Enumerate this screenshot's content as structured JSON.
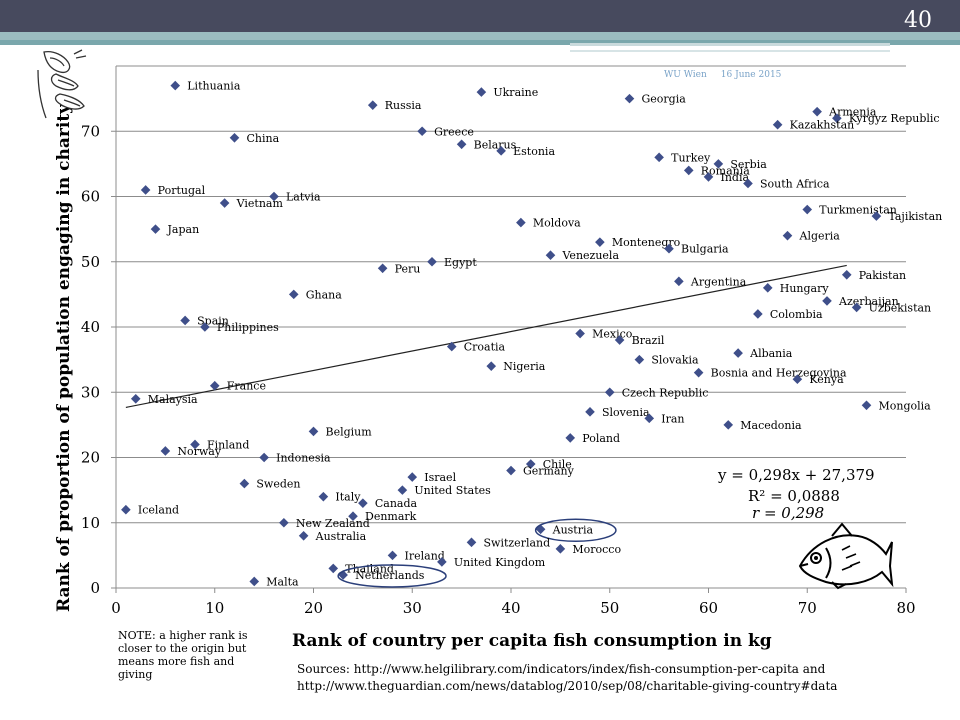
{
  "slide": {
    "number": "40",
    "watermark_org": "WU Wien",
    "watermark_date": "16 June 2015",
    "note": "NOTE: a higher rank is closer to the origin but means more fish and giving",
    "sources_line1": "Sources: http://www.helgilibrary.com/indicators/index/fish-consumption-per-capita and",
    "sources_line2": "http://www.theguardian.com/news/datablog/2010/sep/08/charitable-giving-country#data",
    "regression_equation": "y = 0,298x + 27,379",
    "r_squared": "R² = 0,0888",
    "r_value": "r = 0,298",
    "icons": [
      "praying-hands-icon",
      "fish-icon"
    ]
  },
  "chart_data": {
    "type": "scatter",
    "xlabel": "Rank of country per capita fish consumption in kg",
    "ylabel": "Rank of proportion of population engaging in charity",
    "xlim": [
      0,
      80
    ],
    "ylim": [
      0,
      80
    ],
    "xticks": [
      0,
      10,
      20,
      30,
      40,
      50,
      60,
      70,
      80
    ],
    "yticks": [
      0,
      10,
      20,
      30,
      40,
      50,
      60,
      70
    ],
    "grid": "horizontal",
    "marker": "diamond",
    "marker_color": "#3f4f8a",
    "trendline": {
      "slope": 0.298,
      "intercept": 27.379,
      "x_range": [
        1,
        74
      ]
    },
    "highlighted": [
      "Austria",
      "Netherlands"
    ],
    "points": [
      {
        "label": "Lithuania",
        "x": 6,
        "y": 77
      },
      {
        "label": "Ukraine",
        "x": 37,
        "y": 76
      },
      {
        "label": "Georgia",
        "x": 52,
        "y": 75
      },
      {
        "label": "Russia",
        "x": 26,
        "y": 74
      },
      {
        "label": "Armenia",
        "x": 71,
        "y": 73
      },
      {
        "label": "Kyrgyz Republic",
        "x": 73,
        "y": 72
      },
      {
        "label": "Kazakhstan",
        "x": 67,
        "y": 71
      },
      {
        "label": "Greece",
        "x": 31,
        "y": 70
      },
      {
        "label": "China",
        "x": 12,
        "y": 69
      },
      {
        "label": "Belarus",
        "x": 35,
        "y": 68
      },
      {
        "label": "Estonia",
        "x": 39,
        "y": 67
      },
      {
        "label": "Turkey",
        "x": 55,
        "y": 66
      },
      {
        "label": "Serbia",
        "x": 61,
        "y": 65
      },
      {
        "label": "Romania",
        "x": 58,
        "y": 64
      },
      {
        "label": "India",
        "x": 60,
        "y": 63
      },
      {
        "label": "South Africa",
        "x": 64,
        "y": 62
      },
      {
        "label": "Portugal",
        "x": 3,
        "y": 61
      },
      {
        "label": "Latvia",
        "x": 16,
        "y": 60
      },
      {
        "label": "Vietnam",
        "x": 11,
        "y": 59
      },
      {
        "label": "Turkmenistan",
        "x": 70,
        "y": 58
      },
      {
        "label": "Tajikistan",
        "x": 77,
        "y": 57
      },
      {
        "label": "Moldova",
        "x": 41,
        "y": 56
      },
      {
        "label": "Japan",
        "x": 4,
        "y": 55
      },
      {
        "label": "Algeria",
        "x": 68,
        "y": 54
      },
      {
        "label": "Montenegro",
        "x": 49,
        "y": 53
      },
      {
        "label": "Bulgaria",
        "x": 56,
        "y": 52
      },
      {
        "label": "Venezuela",
        "x": 44,
        "y": 51
      },
      {
        "label": "Egypt",
        "x": 32,
        "y": 50
      },
      {
        "label": "Peru",
        "x": 27,
        "y": 49
      },
      {
        "label": "Pakistan",
        "x": 74,
        "y": 48
      },
      {
        "label": "Argentina",
        "x": 57,
        "y": 47
      },
      {
        "label": "Hungary",
        "x": 66,
        "y": 46
      },
      {
        "label": "Ghana",
        "x": 18,
        "y": 45
      },
      {
        "label": "Azerbaijan",
        "x": 72,
        "y": 44
      },
      {
        "label": "Uzbekistan",
        "x": 75,
        "y": 43
      },
      {
        "label": "Colombia",
        "x": 65,
        "y": 42
      },
      {
        "label": "Spain",
        "x": 7,
        "y": 41
      },
      {
        "label": "Philippines",
        "x": 9,
        "y": 40
      },
      {
        "label": "Mexico",
        "x": 47,
        "y": 39
      },
      {
        "label": "Brazil",
        "x": 51,
        "y": 38
      },
      {
        "label": "Croatia",
        "x": 34,
        "y": 37
      },
      {
        "label": "Albania",
        "x": 63,
        "y": 36
      },
      {
        "label": "Slovakia",
        "x": 53,
        "y": 35
      },
      {
        "label": "Nigeria",
        "x": 38,
        "y": 34
      },
      {
        "label": "Bosnia and Herzegovina",
        "x": 59,
        "y": 33
      },
      {
        "label": "Kenya",
        "x": 69,
        "y": 32
      },
      {
        "label": "France",
        "x": 10,
        "y": 31
      },
      {
        "label": "Czech Republic",
        "x": 50,
        "y": 30
      },
      {
        "label": "Malaysia",
        "x": 2,
        "y": 29
      },
      {
        "label": "Mongolia",
        "x": 76,
        "y": 28
      },
      {
        "label": "Slovenia",
        "x": 48,
        "y": 27
      },
      {
        "label": "Iran",
        "x": 54,
        "y": 26
      },
      {
        "label": "Macedonia",
        "x": 62,
        "y": 25
      },
      {
        "label": "Belgium",
        "x": 20,
        "y": 24
      },
      {
        "label": "Poland",
        "x": 46,
        "y": 23
      },
      {
        "label": "Finland",
        "x": 8,
        "y": 22
      },
      {
        "label": "Norway",
        "x": 5,
        "y": 21
      },
      {
        "label": "Indonesia",
        "x": 15,
        "y": 20
      },
      {
        "label": "Chile",
        "x": 42,
        "y": 19
      },
      {
        "label": "Germany",
        "x": 40,
        "y": 18
      },
      {
        "label": "Israel",
        "x": 30,
        "y": 17
      },
      {
        "label": "Sweden",
        "x": 13,
        "y": 16
      },
      {
        "label": "United States",
        "x": 29,
        "y": 15
      },
      {
        "label": "Italy",
        "x": 21,
        "y": 14
      },
      {
        "label": "Canada",
        "x": 25,
        "y": 13
      },
      {
        "label": "Iceland",
        "x": 1,
        "y": 12
      },
      {
        "label": "Denmark",
        "x": 24,
        "y": 11
      },
      {
        "label": "New Zealand",
        "x": 17,
        "y": 10
      },
      {
        "label": "Austria",
        "x": 43,
        "y": 9
      },
      {
        "label": "Australia",
        "x": 19,
        "y": 8
      },
      {
        "label": "Switzerland",
        "x": 36,
        "y": 7
      },
      {
        "label": "Morocco",
        "x": 45,
        "y": 6
      },
      {
        "label": "Ireland",
        "x": 28,
        "y": 5
      },
      {
        "label": "United Kingdom",
        "x": 33,
        "y": 4
      },
      {
        "label": "Thailand",
        "x": 22,
        "y": 3
      },
      {
        "label": "Netherlands",
        "x": 23,
        "y": 2
      },
      {
        "label": "Malta",
        "x": 14,
        "y": 1
      }
    ]
  }
}
